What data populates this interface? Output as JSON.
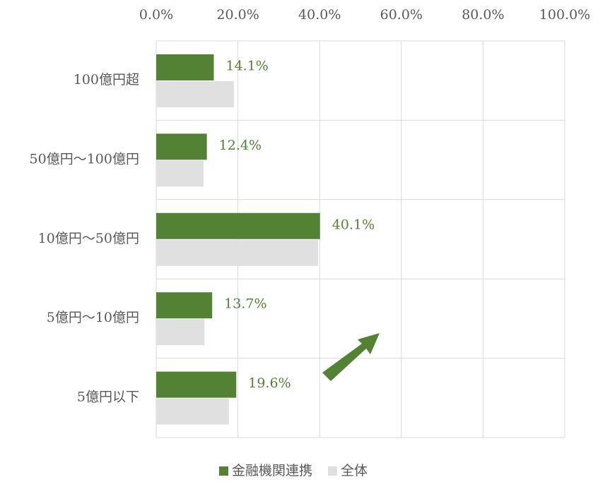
{
  "chart_data": {
    "type": "bar",
    "orientation": "horizontal",
    "categories": [
      "100億円超",
      "50億円～100億円",
      "10億円～50億円",
      "5億円～10億円",
      "5億円以下"
    ],
    "series": [
      {
        "name": "金融機関連携",
        "color": "#548235",
        "values": [
          14.1,
          12.4,
          40.1,
          13.7,
          19.6
        ],
        "value_labels": [
          "14.1%",
          "12.4%",
          "40.1%",
          "13.7%",
          "19.6%"
        ]
      },
      {
        "name": "全体",
        "color": "#e0e0e0",
        "values": [
          19.0,
          11.6,
          39.6,
          11.8,
          17.8
        ]
      }
    ],
    "xlim": [
      0,
      100
    ],
    "xticks": [
      {
        "value": 0,
        "label": "0.0%"
      },
      {
        "value": 20,
        "label": "20.0%"
      },
      {
        "value": 40,
        "label": "40.0%"
      },
      {
        "value": 60,
        "label": "60.0%"
      },
      {
        "value": 80,
        "label": "80.0%"
      },
      {
        "value": 100,
        "label": "100.0%"
      }
    ],
    "grid": true,
    "legend": "bottom"
  }
}
